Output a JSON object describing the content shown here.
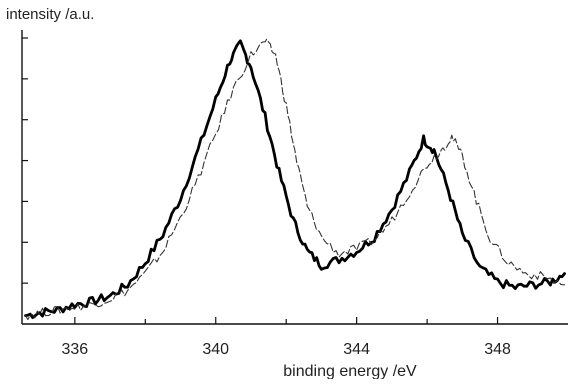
{
  "chart_data": {
    "type": "line",
    "title": "",
    "xlabel": "binding energy  /eV",
    "ylabel": "intensity  /a.u.",
    "xlim": [
      334.5,
      350.0
    ],
    "ylim": [
      0,
      100
    ],
    "grid": false,
    "legend": "none",
    "x_ticks": [
      336,
      340,
      344,
      348
    ],
    "x_tick_labels": [
      "336",
      "340",
      "344",
      "348"
    ],
    "x_minor_ticks": [
      338,
      342,
      346
    ],
    "y_tick_count": 7,
    "series": [
      {
        "style": "thick-solid",
        "color": "#000000",
        "points": [
          [
            334.6,
            3
          ],
          [
            335.0,
            4
          ],
          [
            335.5,
            5
          ],
          [
            336.0,
            7
          ],
          [
            336.5,
            8
          ],
          [
            337.0,
            10
          ],
          [
            337.5,
            14
          ],
          [
            338.0,
            22
          ],
          [
            338.5,
            32
          ],
          [
            339.0,
            45
          ],
          [
            339.5,
            62
          ],
          [
            340.0,
            80
          ],
          [
            340.4,
            94
          ],
          [
            340.7,
            100
          ],
          [
            341.0,
            92
          ],
          [
            341.4,
            74
          ],
          [
            341.8,
            54
          ],
          [
            342.2,
            37
          ],
          [
            342.6,
            26
          ],
          [
            343.0,
            21
          ],
          [
            343.5,
            23
          ],
          [
            344.0,
            26
          ],
          [
            344.5,
            31
          ],
          [
            345.0,
            41
          ],
          [
            345.5,
            54
          ],
          [
            345.9,
            66
          ],
          [
            346.2,
            62
          ],
          [
            346.6,
            48
          ],
          [
            347.0,
            32
          ],
          [
            347.5,
            20
          ],
          [
            348.0,
            15
          ],
          [
            348.5,
            13
          ],
          [
            349.0,
            14
          ],
          [
            349.5,
            15
          ],
          [
            349.9,
            18
          ]
        ]
      },
      {
        "style": "thin-dashed",
        "color": "#333333",
        "points": [
          [
            334.6,
            3
          ],
          [
            335.0,
            4
          ],
          [
            335.5,
            5
          ],
          [
            336.0,
            6
          ],
          [
            336.5,
            7
          ],
          [
            337.0,
            9
          ],
          [
            337.5,
            12
          ],
          [
            338.0,
            18
          ],
          [
            338.5,
            26
          ],
          [
            339.0,
            38
          ],
          [
            339.5,
            52
          ],
          [
            340.0,
            68
          ],
          [
            340.5,
            84
          ],
          [
            341.0,
            96
          ],
          [
            341.4,
            101
          ],
          [
            341.7,
            96
          ],
          [
            342.0,
            78
          ],
          [
            342.3,
            58
          ],
          [
            342.6,
            42
          ],
          [
            343.0,
            31
          ],
          [
            343.5,
            25
          ],
          [
            344.0,
            27
          ],
          [
            344.5,
            30
          ],
          [
            345.0,
            37
          ],
          [
            345.5,
            47
          ],
          [
            346.0,
            57
          ],
          [
            346.4,
            62
          ],
          [
            346.7,
            67
          ],
          [
            347.0,
            60
          ],
          [
            347.4,
            44
          ],
          [
            347.8,
            30
          ],
          [
            348.3,
            22
          ],
          [
            348.8,
            18
          ],
          [
            349.3,
            17
          ],
          [
            349.9,
            14
          ]
        ]
      }
    ]
  }
}
